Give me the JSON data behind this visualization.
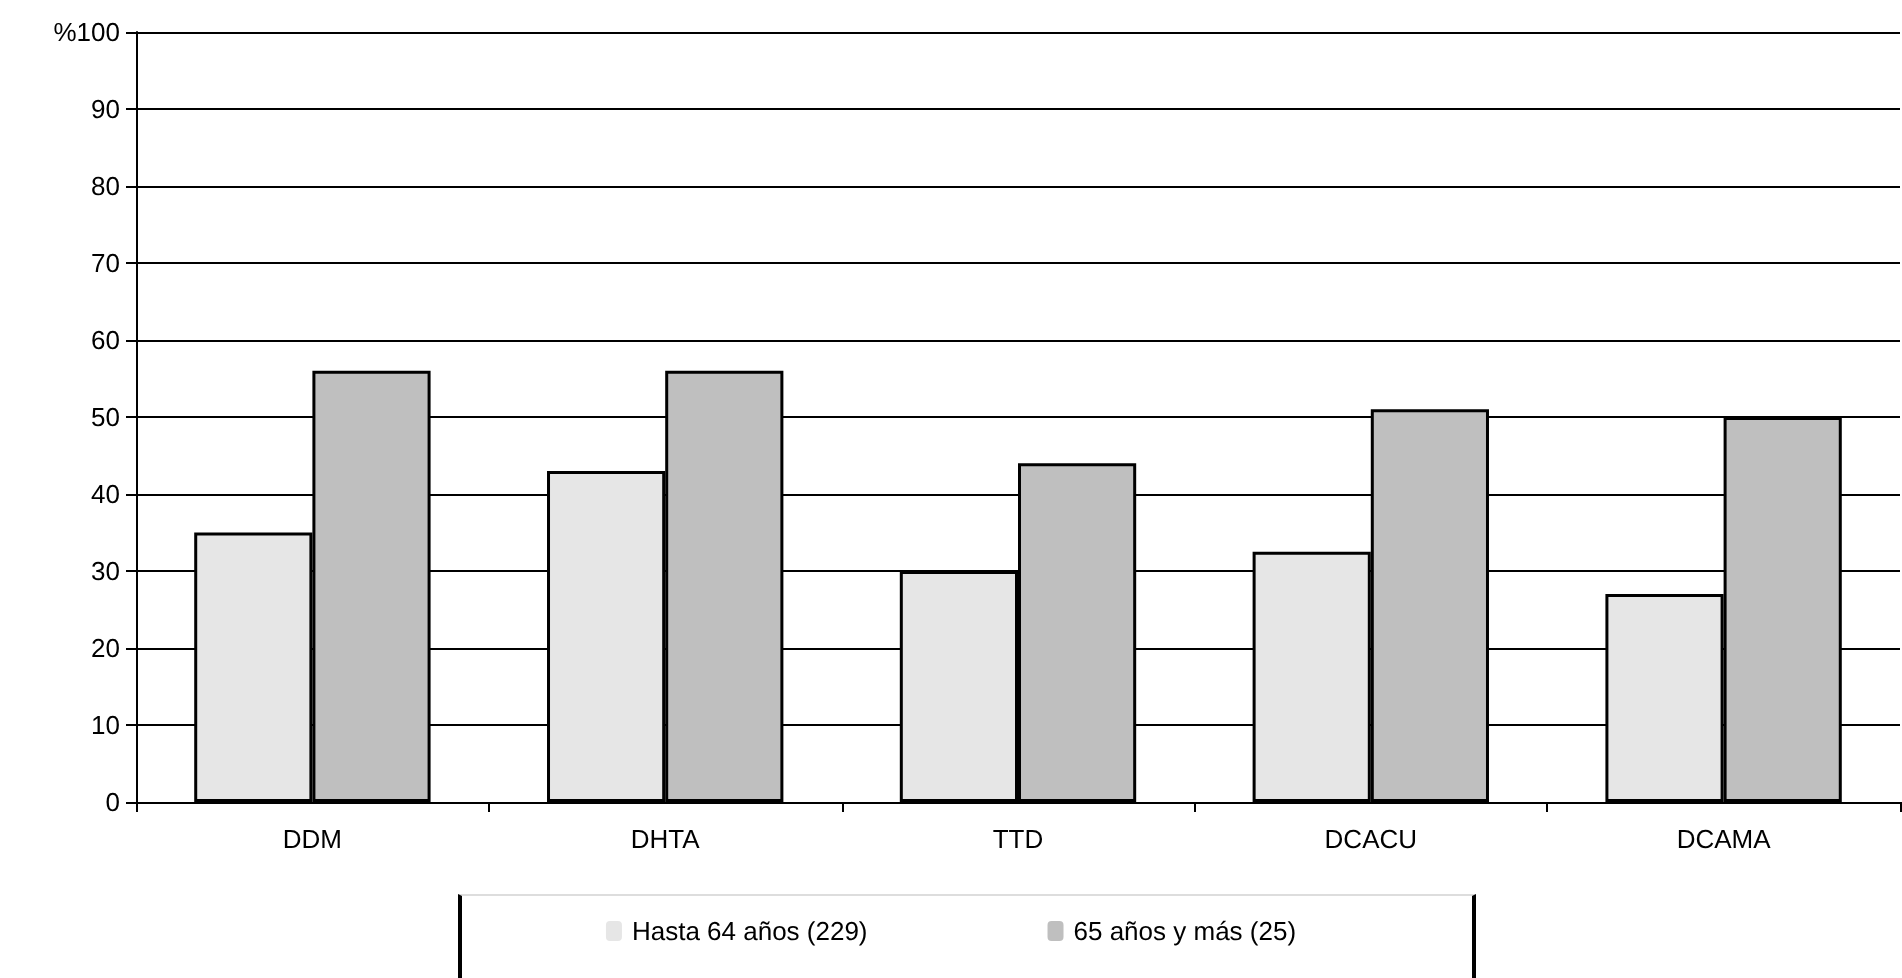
{
  "chart_data": {
    "type": "bar",
    "categories": [
      "DDM",
      "DHTA",
      "TTD",
      "DCACU",
      "DCAMA"
    ],
    "series": [
      {
        "name": "Hasta 64 años (229)",
        "color": "#e6e6e6",
        "values": [
          35,
          43,
          30,
          32.5,
          27
        ]
      },
      {
        "name": "65 años y más (25)",
        "color": "#bfbfbf",
        "values": [
          56,
          56,
          44,
          51,
          50
        ]
      }
    ],
    "ylim": [
      0,
      100
    ],
    "yticks": [
      0,
      10,
      20,
      30,
      40,
      50,
      60,
      70,
      80,
      90,
      {
        "value": 100,
        "label": "%100"
      }
    ],
    "grid": "y",
    "legend": "bottom"
  }
}
